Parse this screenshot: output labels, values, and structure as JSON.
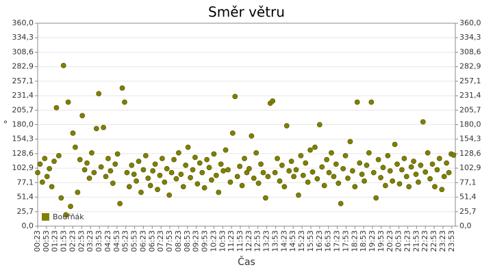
{
  "chart_data": {
    "type": "scatter",
    "title": "Směr větru",
    "x_label": "Čas",
    "y_label": "°",
    "legend_position": "lower left",
    "grid": true,
    "xlim": [
      23,
      1445
    ],
    "xticks": [
      {
        "value": 23,
        "label": "00:23"
      },
      {
        "value": 53,
        "label": "00:53"
      },
      {
        "value": 83,
        "label": "01:23"
      },
      {
        "value": 113,
        "label": "01:53"
      },
      {
        "value": 143,
        "label": "02:23"
      },
      {
        "value": 173,
        "label": "02:53"
      },
      {
        "value": 203,
        "label": "03:23"
      },
      {
        "value": 233,
        "label": "03:53"
      },
      {
        "value": 263,
        "label": "04:23"
      },
      {
        "value": 293,
        "label": "04:53"
      },
      {
        "value": 323,
        "label": "05:23"
      },
      {
        "value": 353,
        "label": "05:53"
      },
      {
        "value": 383,
        "label": "06:23"
      },
      {
        "value": 413,
        "label": "06:53"
      },
      {
        "value": 443,
        "label": "07:23"
      },
      {
        "value": 473,
        "label": "07:53"
      },
      {
        "value": 503,
        "label": "08:23"
      },
      {
        "value": 533,
        "label": "08:53"
      },
      {
        "value": 563,
        "label": "09:23"
      },
      {
        "value": 593,
        "label": "09:53"
      },
      {
        "value": 623,
        "label": "10:23"
      },
      {
        "value": 653,
        "label": "10:53"
      },
      {
        "value": 683,
        "label": "11:23"
      },
      {
        "value": 713,
        "label": "11:53"
      },
      {
        "value": 743,
        "label": "12:23"
      },
      {
        "value": 773,
        "label": "12:53"
      },
      {
        "value": 803,
        "label": "13:23"
      },
      {
        "value": 833,
        "label": "13:53"
      },
      {
        "value": 863,
        "label": "14:23"
      },
      {
        "value": 893,
        "label": "14:53"
      },
      {
        "value": 923,
        "label": "15:23"
      },
      {
        "value": 953,
        "label": "15:53"
      },
      {
        "value": 983,
        "label": "16:23"
      },
      {
        "value": 1013,
        "label": "16:53"
      },
      {
        "value": 1043,
        "label": "17:23"
      },
      {
        "value": 1073,
        "label": "17:53"
      },
      {
        "value": 1103,
        "label": "18:23"
      },
      {
        "value": 1133,
        "label": "18:53"
      },
      {
        "value": 1163,
        "label": "19:23"
      },
      {
        "value": 1193,
        "label": "19:53"
      },
      {
        "value": 1223,
        "label": "20:23"
      },
      {
        "value": 1253,
        "label": "20:53"
      },
      {
        "value": 1283,
        "label": "21:23"
      },
      {
        "value": 1313,
        "label": "21:53"
      },
      {
        "value": 1343,
        "label": "22:23"
      },
      {
        "value": 1373,
        "label": "22:53"
      },
      {
        "value": 1403,
        "label": "23:23"
      },
      {
        "value": 1433,
        "label": "23:53"
      }
    ],
    "ylim": [
      0,
      360
    ],
    "yticks": [
      {
        "value": 0,
        "label": "0,0"
      },
      {
        "value": 25.7,
        "label": "25,7"
      },
      {
        "value": 51.4,
        "label": "51,4"
      },
      {
        "value": 77.1,
        "label": "77,1"
      },
      {
        "value": 102.9,
        "label": "102,9"
      },
      {
        "value": 128.6,
        "label": "128,6"
      },
      {
        "value": 154.3,
        "label": "154,3"
      },
      {
        "value": 180,
        "label": "180,0"
      },
      {
        "value": 205.7,
        "label": "205,7"
      },
      {
        "value": 231.4,
        "label": "231,4"
      },
      {
        "value": 257.1,
        "label": "257,1"
      },
      {
        "value": 282.9,
        "label": "282,9"
      },
      {
        "value": 308.6,
        "label": "308,6"
      },
      {
        "value": 334.3,
        "label": "334,3"
      },
      {
        "value": 360,
        "label": "360,0"
      }
    ],
    "series": [
      {
        "name": "Bouřňák",
        "color": "#808000",
        "x": [
          23,
          31,
          39,
          47,
          55,
          63,
          71,
          79,
          87,
          95,
          103,
          111,
          119,
          127,
          135,
          143,
          151,
          159,
          167,
          175,
          183,
          191,
          199,
          207,
          215,
          223,
          231,
          239,
          247,
          255,
          263,
          271,
          279,
          287,
          295,
          303,
          311,
          319,
          327,
          335,
          343,
          351,
          359,
          367,
          375,
          383,
          391,
          399,
          407,
          415,
          423,
          431,
          439,
          447,
          455,
          463,
          471,
          479,
          487,
          495,
          503,
          511,
          519,
          527,
          535,
          543,
          551,
          559,
          567,
          575,
          583,
          591,
          599,
          607,
          615,
          623,
          631,
          639,
          647,
          655,
          663,
          671,
          679,
          687,
          695,
          703,
          711,
          719,
          727,
          735,
          743,
          751,
          759,
          767,
          775,
          783,
          791,
          799,
          807,
          815,
          823,
          831,
          839,
          847,
          855,
          863,
          871,
          879,
          887,
          895,
          903,
          911,
          919,
          927,
          935,
          943,
          951,
          959,
          967,
          975,
          983,
          991,
          999,
          1007,
          1015,
          1023,
          1031,
          1039,
          1047,
          1055,
          1063,
          1071,
          1079,
          1087,
          1095,
          1103,
          1111,
          1119,
          1127,
          1135,
          1143,
          1151,
          1159,
          1167,
          1175,
          1183,
          1191,
          1199,
          1207,
          1215,
          1223,
          1231,
          1239,
          1247,
          1255,
          1263,
          1271,
          1279,
          1287,
          1295,
          1303,
          1311,
          1319,
          1327,
          1335,
          1343,
          1351,
          1359,
          1367,
          1375,
          1383,
          1391,
          1399,
          1407,
          1415,
          1423,
          1431,
          1439
        ],
        "values": [
          95,
          110,
          78,
          120,
          88,
          102,
          70,
          115,
          210,
          125,
          50,
          285,
          20,
          220,
          35,
          165,
          140,
          60,
          118,
          196,
          100,
          112,
          85,
          130,
          95,
          173,
          235,
          105,
          175,
          88,
          120,
          98,
          76,
          110,
          128,
          40,
          245,
          220,
          95,
          70,
          108,
          92,
          80,
          115,
          60,
          100,
          125,
          85,
          72,
          98,
          110,
          65,
          90,
          120,
          78,
          102,
          55,
          95,
          118,
          84,
          130,
          92,
          70,
          108,
          140,
          86,
          100,
          122,
          75,
          112,
          95,
          68,
          118,
          104,
          82,
          128,
          90,
          60,
          110,
          98,
          135,
          100,
          78,
          165,
          230,
          88,
          106,
          72,
          120,
          95,
          102,
          160,
          85,
          130,
          76,
          110,
          95,
          50,
          88,
          218,
          222,
          95,
          120,
          80,
          108,
          70,
          178,
          98,
          115,
          88,
          100,
          55,
          125,
          90,
          112,
          78,
          135,
          96,
          140,
          84,
          180,
          105,
          72,
          118,
          95,
          130,
          88,
          110,
          76,
          40,
          102,
          125,
          85,
          150,
          98,
          70,
          220,
          112,
          92,
          80,
          108,
          130,
          220,
          95,
          50,
          118,
          86,
          104,
          72,
          125,
          98,
          80,
          145,
          110,
          75,
          100,
          120,
          88,
          70,
          105,
          115,
          92,
          78,
          108,
          185,
          96,
          130,
          84,
          110,
          70,
          100,
          120,
          65,
          88,
          112,
          95,
          128,
          126
        ]
      }
    ]
  }
}
